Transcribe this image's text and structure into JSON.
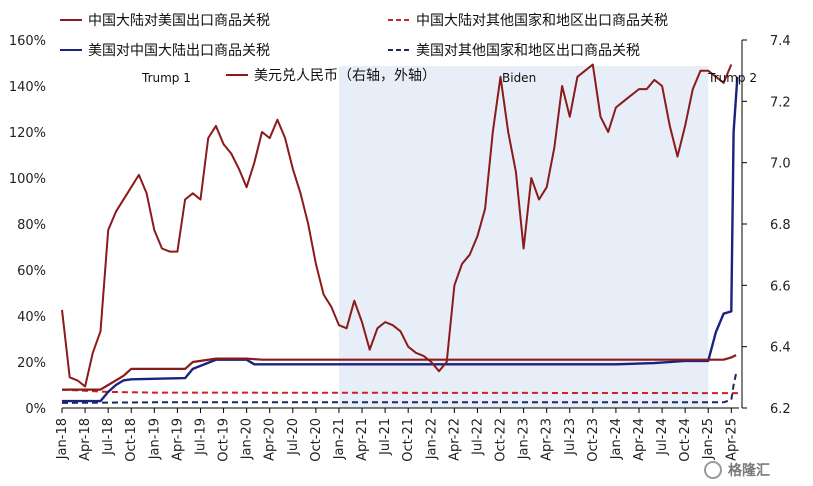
{
  "chart_data": {
    "type": "line",
    "title": "",
    "colors": {
      "dark_red": "#8b1a1a",
      "red_dashed": "#cc2222",
      "navy": "#1a237e",
      "navy_dashed": "#1a2a5a",
      "shade": "#e8eef8"
    },
    "left_axis": {
      "ylim": [
        0,
        160
      ],
      "ticks": [
        0,
        20,
        40,
        60,
        80,
        100,
        120,
        140,
        160
      ],
      "tick_labels": [
        "0%",
        "20%",
        "40%",
        "60%",
        "80%",
        "100%",
        "120%",
        "140%",
        "160%"
      ]
    },
    "right_axis": {
      "ylim": [
        6.2,
        7.4
      ],
      "ticks": [
        6.2,
        6.4,
        6.6,
        6.8,
        7.0,
        7.2,
        7.4
      ],
      "tick_labels": [
        "6.2",
        "6.4",
        "6.6",
        "6.8",
        "7.0",
        "7.2",
        "7.4"
      ]
    },
    "x_axis": {
      "start": "2018-01",
      "end": "2025-05",
      "tick_labels": [
        "Jan-18",
        "Apr-18",
        "Jul-18",
        "Oct-18",
        "Jan-19",
        "Apr-19",
        "Jul-19",
        "Oct-19",
        "Jan-20",
        "Apr-20",
        "Jul-20",
        "Oct-20",
        "Jan-21",
        "Apr-21",
        "Jul-21",
        "Oct-21",
        "Jan-22",
        "Apr-22",
        "Jul-22",
        "Oct-22",
        "Jan-23",
        "Apr-23",
        "Jul-23",
        "Oct-23",
        "Jan-24",
        "Apr-24",
        "Jul-24",
        "Oct-24",
        "Jan-25",
        "Apr-25"
      ]
    },
    "shaded_period": {
      "start": "2021-01",
      "end": "2025-01"
    },
    "annotations": [
      {
        "text": "Trump 1",
        "x": "2018-10"
      },
      {
        "text": "Biden",
        "x": "2022-07"
      },
      {
        "text": "Trump 2",
        "x": "2025-02"
      }
    ],
    "legend": {
      "placement": "top",
      "items": [
        {
          "label": "中国大陆对美国出口商品关税",
          "style": "solid",
          "color": "#8b1a1a"
        },
        {
          "label": "中国大陆对其他国家和地区出口商品关税",
          "style": "dashed",
          "color": "#cc2222"
        },
        {
          "label": "美国对中国大陆出口商品关税",
          "style": "solid",
          "color": "#1a237e"
        },
        {
          "label": "美国对其他国家和地区出口商品关税",
          "style": "dashed",
          "color": "#1a2a5a"
        },
        {
          "label": "美元兑人民币（右轴，外轴）",
          "style": "solid",
          "color": "#8b1a1a"
        }
      ]
    },
    "series": [
      {
        "name": "中国大陆对美国出口商品关税",
        "axis": "left",
        "points": [
          [
            "2018-01",
            8
          ],
          [
            "2018-06",
            8
          ],
          [
            "2018-07",
            10
          ],
          [
            "2018-09",
            14
          ],
          [
            "2018-10",
            17
          ],
          [
            "2019-05",
            17
          ],
          [
            "2019-06",
            20
          ],
          [
            "2019-09",
            21.5
          ],
          [
            "2020-01",
            21.5
          ],
          [
            "2020-03",
            21
          ],
          [
            "2025-03",
            21
          ],
          [
            "2025-04",
            22
          ],
          [
            "2025-04-20",
            23
          ]
        ]
      },
      {
        "name": "中国大陆对其他国家和地区出口商品关税",
        "axis": "left",
        "points": [
          [
            "2018-01",
            8
          ],
          [
            "2018-07",
            7
          ],
          [
            "2019-01",
            6.7
          ],
          [
            "2025-05",
            6.5
          ]
        ]
      },
      {
        "name": "美国对中国大陆出口商品关税",
        "axis": "left",
        "points": [
          [
            "2018-01",
            3
          ],
          [
            "2018-06",
            3
          ],
          [
            "2018-07",
            7
          ],
          [
            "2018-08",
            10
          ],
          [
            "2018-09",
            12
          ],
          [
            "2018-10",
            12.5
          ],
          [
            "2019-05",
            13
          ],
          [
            "2019-06",
            17
          ],
          [
            "2019-09",
            21
          ],
          [
            "2020-01",
            21
          ],
          [
            "2020-02",
            19
          ],
          [
            "2024-01",
            19
          ],
          [
            "2024-06",
            19.5
          ],
          [
            "2024-10",
            20.5
          ],
          [
            "2025-01",
            20.5
          ],
          [
            "2025-02",
            33
          ],
          [
            "2025-03",
            41
          ],
          [
            "2025-04",
            42
          ],
          [
            "2025-04-10",
            120
          ],
          [
            "2025-04-25",
            144
          ]
        ]
      },
      {
        "name": "美国对其他国家和地区出口商品关税",
        "axis": "left",
        "points": [
          [
            "2018-01",
            2.2
          ],
          [
            "2019-01",
            2.5
          ],
          [
            "2025-03",
            2.5
          ],
          [
            "2025-04",
            3.5
          ],
          [
            "2025-04-10",
            10
          ],
          [
            "2025-04-20",
            15
          ]
        ]
      },
      {
        "name": "美元兑人民币（右轴，外轴）",
        "axis": "right",
        "points": [
          [
            "2018-01",
            6.52
          ],
          [
            "2018-02",
            6.3
          ],
          [
            "2018-03",
            6.29
          ],
          [
            "2018-04",
            6.27
          ],
          [
            "2018-05",
            6.38
          ],
          [
            "2018-06",
            6.45
          ],
          [
            "2018-07",
            6.78
          ],
          [
            "2018-08",
            6.84
          ],
          [
            "2018-10",
            6.92
          ],
          [
            "2018-11",
            6.96
          ],
          [
            "2018-12",
            6.9
          ],
          [
            "2019-01",
            6.78
          ],
          [
            "2019-02",
            6.72
          ],
          [
            "2019-03",
            6.71
          ],
          [
            "2019-04",
            6.71
          ],
          [
            "2019-05",
            6.88
          ],
          [
            "2019-06",
            6.9
          ],
          [
            "2019-07",
            6.88
          ],
          [
            "2019-08",
            7.08
          ],
          [
            "2019-09",
            7.12
          ],
          [
            "2019-10",
            7.06
          ],
          [
            "2019-11",
            7.03
          ],
          [
            "2019-12",
            6.98
          ],
          [
            "2020-01",
            6.92
          ],
          [
            "2020-02",
            7.0
          ],
          [
            "2020-03",
            7.1
          ],
          [
            "2020-04",
            7.08
          ],
          [
            "2020-05",
            7.14
          ],
          [
            "2020-06",
            7.08
          ],
          [
            "2020-07",
            6.98
          ],
          [
            "2020-08",
            6.9
          ],
          [
            "2020-09",
            6.8
          ],
          [
            "2020-10",
            6.67
          ],
          [
            "2020-11",
            6.57
          ],
          [
            "2020-12",
            6.53
          ],
          [
            "2021-01",
            6.47
          ],
          [
            "2021-02",
            6.46
          ],
          [
            "2021-03",
            6.55
          ],
          [
            "2021-04",
            6.48
          ],
          [
            "2021-05",
            6.39
          ],
          [
            "2021-06",
            6.46
          ],
          [
            "2021-07",
            6.48
          ],
          [
            "2021-08",
            6.47
          ],
          [
            "2021-09",
            6.45
          ],
          [
            "2021-10",
            6.4
          ],
          [
            "2021-11",
            6.38
          ],
          [
            "2021-12",
            6.37
          ],
          [
            "2022-01",
            6.35
          ],
          [
            "2022-02",
            6.32
          ],
          [
            "2022-03",
            6.35
          ],
          [
            "2022-04",
            6.6
          ],
          [
            "2022-05",
            6.67
          ],
          [
            "2022-06",
            6.7
          ],
          [
            "2022-07",
            6.76
          ],
          [
            "2022-08",
            6.85
          ],
          [
            "2022-09",
            7.1
          ],
          [
            "2022-10",
            7.28
          ],
          [
            "2022-11",
            7.1
          ],
          [
            "2022-12",
            6.97
          ],
          [
            "2023-01",
            6.72
          ],
          [
            "2023-02",
            6.95
          ],
          [
            "2023-03",
            6.88
          ],
          [
            "2023-04",
            6.92
          ],
          [
            "2023-05",
            7.05
          ],
          [
            "2023-06",
            7.25
          ],
          [
            "2023-07",
            7.15
          ],
          [
            "2023-08",
            7.28
          ],
          [
            "2023-09",
            7.3
          ],
          [
            "2023-10",
            7.32
          ],
          [
            "2023-11",
            7.15
          ],
          [
            "2023-12",
            7.1
          ],
          [
            "2024-01",
            7.18
          ],
          [
            "2024-02",
            7.2
          ],
          [
            "2024-03",
            7.22
          ],
          [
            "2024-04",
            7.24
          ],
          [
            "2024-05",
            7.24
          ],
          [
            "2024-06",
            7.27
          ],
          [
            "2024-07",
            7.25
          ],
          [
            "2024-08",
            7.12
          ],
          [
            "2024-09",
            7.02
          ],
          [
            "2024-10",
            7.12
          ],
          [
            "2024-11",
            7.24
          ],
          [
            "2024-12",
            7.3
          ],
          [
            "2025-01",
            7.3
          ],
          [
            "2025-02",
            7.28
          ],
          [
            "2025-03",
            7.26
          ],
          [
            "2025-04",
            7.32
          ]
        ]
      }
    ]
  },
  "watermark": "格隆汇"
}
